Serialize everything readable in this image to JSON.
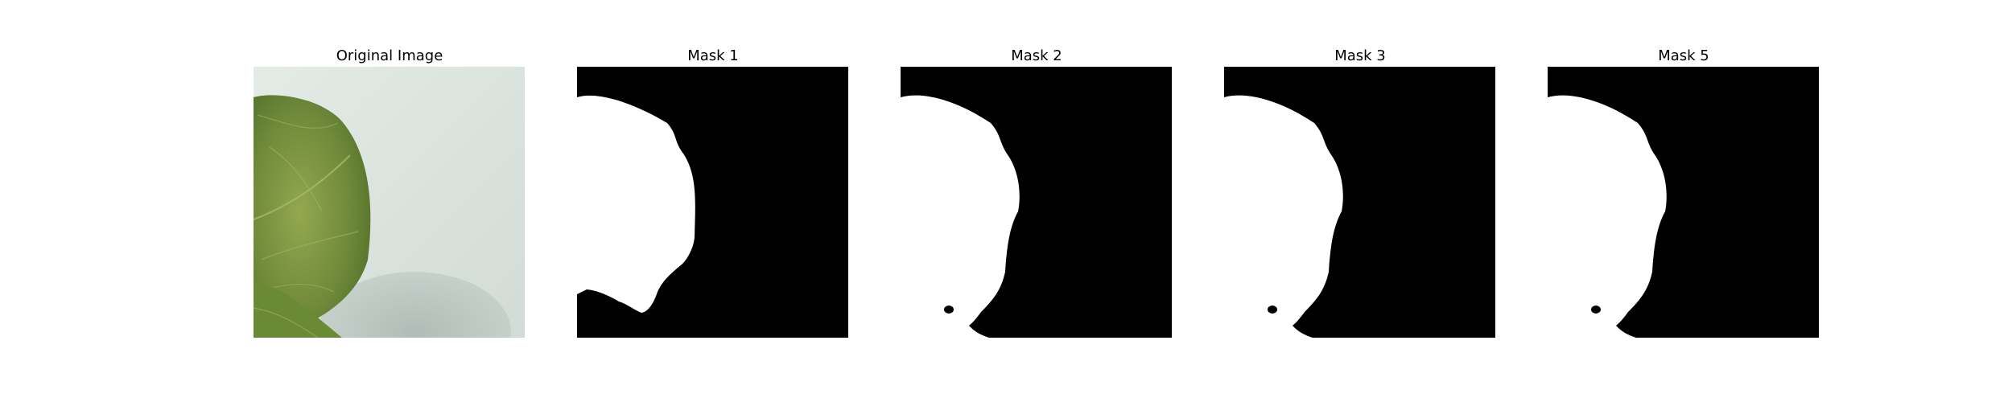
{
  "figure": {
    "panels": [
      {
        "title": "Original Image"
      },
      {
        "title": "Mask 1"
      },
      {
        "title": "Mask 2"
      },
      {
        "title": "Mask 3"
      },
      {
        "title": "Mask 5"
      }
    ],
    "colors": {
      "background": "#ffffff",
      "mask_background": "#000000",
      "mask_foreground": "#ffffff",
      "photo_wall": "#dde4e0",
      "photo_leaf": "#71893d",
      "photo_shadow": "#b5c0bc"
    }
  }
}
